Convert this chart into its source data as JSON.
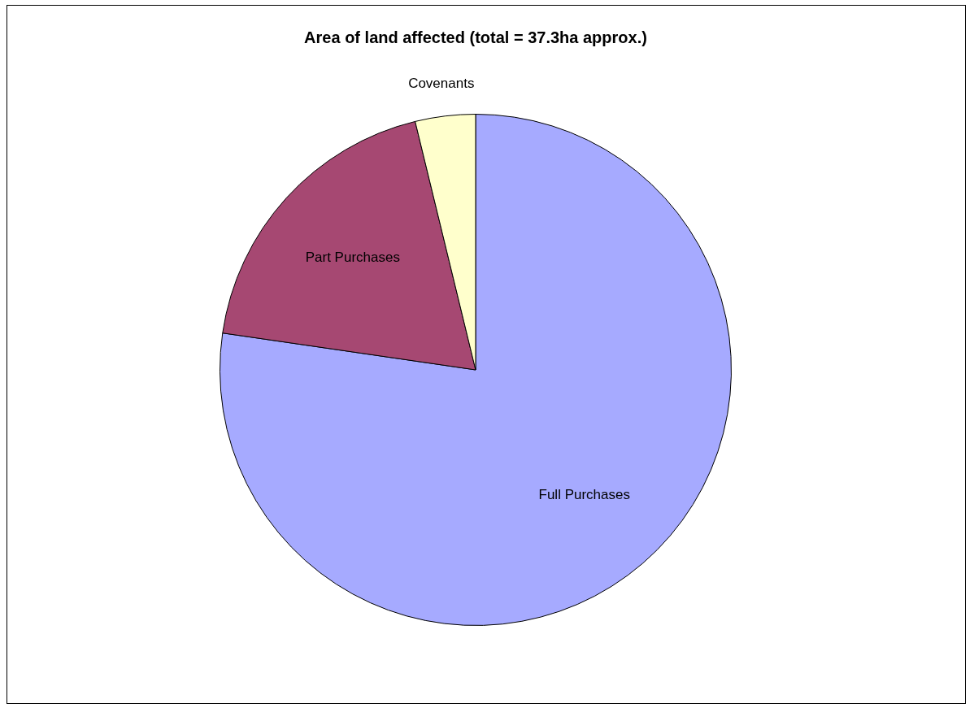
{
  "chart_data": {
    "type": "pie",
    "title": "Area of land affected (total = 37.3ha approx.)",
    "categories": [
      "Full Purchases",
      "Part Purchases",
      "Covenants"
    ],
    "values": [
      77.3,
      18.9,
      3.8
    ],
    "colors": [
      "#a6aaff",
      "#a64872",
      "#ffffcc"
    ],
    "legend": false
  }
}
